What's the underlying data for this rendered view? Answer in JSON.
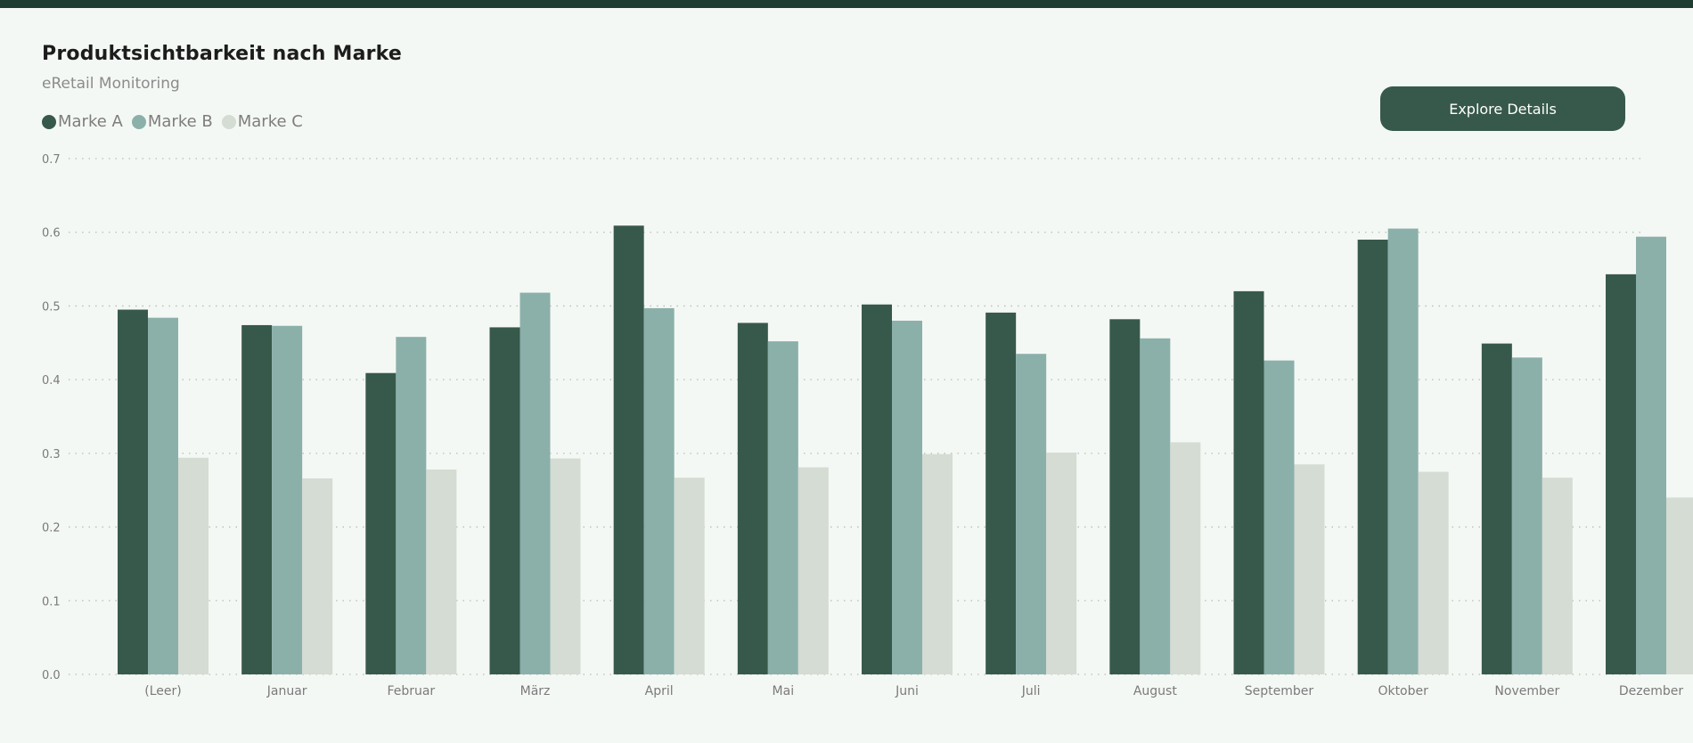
{
  "header": {
    "title": "Produktsichtbarkeit nach Marke",
    "subtitle": "eRetail Monitoring",
    "button_label": "Explore Details"
  },
  "colors": {
    "top_bar": "#1f3d31",
    "background": "#f4f8f4",
    "button": "#37594b"
  },
  "chart_data": {
    "type": "bar",
    "title": "Produktsichtbarkeit nach Marke",
    "subtitle": "eRetail Monitoring",
    "xlabel": "",
    "ylabel": "",
    "ylim": [
      0,
      0.7
    ],
    "yticks": [
      "0.0",
      "0.1",
      "0.2",
      "0.3",
      "0.4",
      "0.5",
      "0.6",
      "0.7"
    ],
    "grid": true,
    "legend_position": "top-left",
    "categories": [
      "(Leer)",
      "Januar",
      "Februar",
      "März",
      "April",
      "Mai",
      "Juni",
      "Juli",
      "August",
      "September",
      "Oktober",
      "November",
      "Dezember"
    ],
    "series": [
      {
        "name": "Marke A",
        "color": "#37594b",
        "values": [
          0.495,
          0.474,
          0.409,
          0.471,
          0.609,
          0.477,
          0.502,
          0.491,
          0.482,
          0.52,
          0.59,
          0.449,
          0.543
        ]
      },
      {
        "name": "Marke B",
        "color": "#8bb0aa",
        "values": [
          0.484,
          0.473,
          0.458,
          0.518,
          0.497,
          0.452,
          0.48,
          0.435,
          0.456,
          0.426,
          0.605,
          0.43,
          0.594
        ]
      },
      {
        "name": "Marke C",
        "color": "#d4dcd3",
        "values": [
          0.294,
          0.266,
          0.278,
          0.293,
          0.267,
          0.281,
          0.299,
          0.301,
          0.315,
          0.285,
          0.275,
          0.267,
          0.24
        ]
      }
    ]
  }
}
